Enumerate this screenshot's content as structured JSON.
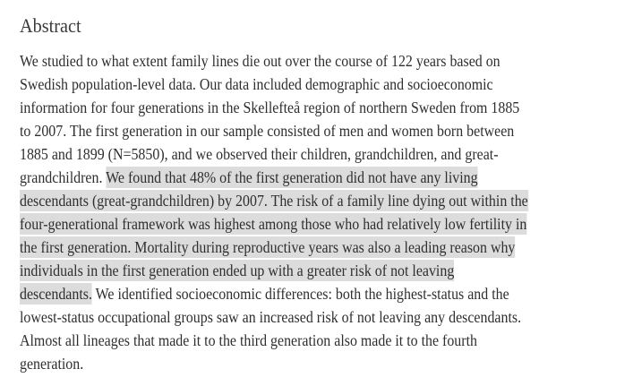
{
  "heading": "Abstract",
  "highlight_color": "#dcdcdc",
  "lines": [
    [
      {
        "text": "We studied to what extent family lines die out over the course of 122 years based on",
        "hl": false
      }
    ],
    [
      {
        "text": "Swedish population-level data. Our data included demographic and socioeconomic",
        "hl": false
      }
    ],
    [
      {
        "text": "information for four generations in the Skellefteå region of northern Sweden from 1885",
        "hl": false
      }
    ],
    [
      {
        "text": "to 2007. The first generation in our sample consisted of men and women born between",
        "hl": false
      }
    ],
    [
      {
        "text": "1885 and 1899 (N=5850), and we observed their children, grandchildren, and great-",
        "hl": false
      }
    ],
    [
      {
        "text": "grandchildren. ",
        "hl": false
      },
      {
        "text": "We found that 48% of the first generation did not have any living",
        "hl": true
      }
    ],
    [
      {
        "text": "descendants (great-grandchildren) by 2007. The risk of a family line dying out within the",
        "hl": true
      }
    ],
    [
      {
        "text": "four-generational framework was highest among those who had relatively low fertility in",
        "hl": true
      }
    ],
    [
      {
        "text": "the first generation. Mortality during reproductive years was also a leading reason why",
        "hl": true
      }
    ],
    [
      {
        "text": "individuals in the first generation ended up with a greater risk of not leaving",
        "hl": true
      }
    ],
    [
      {
        "text": "descendants.",
        "hl": true
      },
      {
        "text": " We identified socioeconomic differences: both the highest-status and the",
        "hl": false
      }
    ],
    [
      {
        "text": "lowest-status occupational groups saw an increased risk of not leaving any descendants.",
        "hl": false
      }
    ],
    [
      {
        "text": "Almost all lineages that made it to the third generation also made it to the fourth",
        "hl": false
      }
    ],
    [
      {
        "text": "generation.",
        "hl": false
      }
    ]
  ]
}
